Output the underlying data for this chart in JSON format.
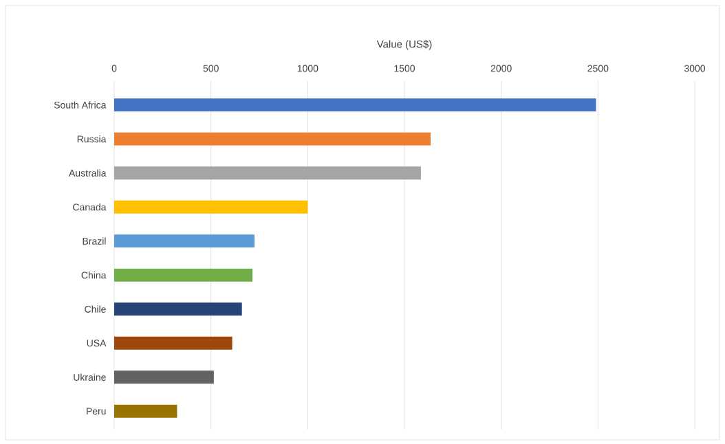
{
  "chart_data": {
    "type": "bar",
    "orientation": "horizontal",
    "xlabel": "Value (US$)",
    "categories": [
      "South Africa",
      "Russia",
      "Australia",
      "Canada",
      "Brazil",
      "China",
      "Chile",
      "USA",
      "Ukraine",
      "Peru"
    ],
    "values": [
      2490,
      1635,
      1585,
      1000,
      725,
      715,
      660,
      610,
      515,
      325
    ],
    "colors": [
      "#4472c4",
      "#ed7d31",
      "#a5a5a5",
      "#ffc000",
      "#5b9bd5",
      "#70ad47",
      "#264478",
      "#9e480e",
      "#636363",
      "#997300"
    ],
    "xlim": [
      0,
      3000
    ],
    "xticks": [
      0,
      500,
      1000,
      1500,
      2000,
      2500,
      3000
    ],
    "grid": "x"
  }
}
